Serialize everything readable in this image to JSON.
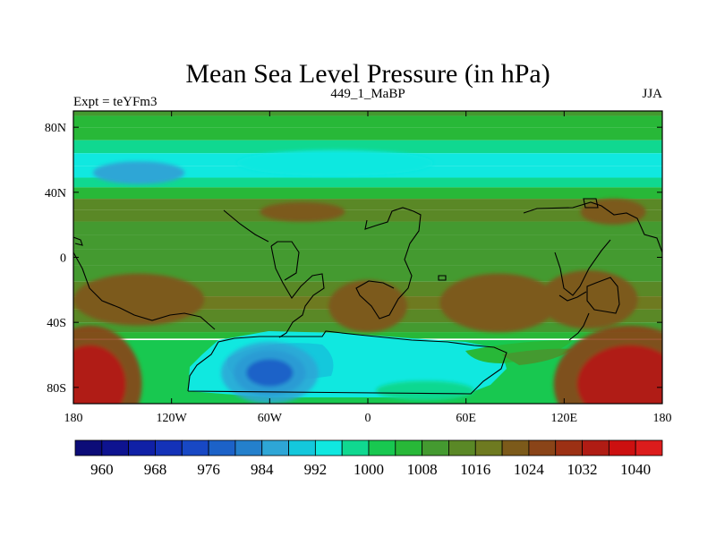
{
  "chart_data": {
    "type": "heatmap",
    "title": "Mean Sea Level Pressure (in hPa)",
    "left_label": "Expt = teYFm3",
    "center_label": "449_1_MaBP",
    "right_label": "JJA",
    "xlim": [
      -180,
      180
    ],
    "ylim": [
      -90,
      90
    ],
    "x_ticks": [
      {
        "value": -180,
        "label": "180"
      },
      {
        "value": -120,
        "label": "120W"
      },
      {
        "value": -60,
        "label": "60W"
      },
      {
        "value": 0,
        "label": "0"
      },
      {
        "value": 60,
        "label": "60E"
      },
      {
        "value": 120,
        "label": "120E"
      },
      {
        "value": 180,
        "label": "180"
      }
    ],
    "y_ticks": [
      {
        "value": 80,
        "label": "80N"
      },
      {
        "value": 40,
        "label": "40N"
      },
      {
        "value": 0,
        "label": "0"
      },
      {
        "value": -40,
        "label": "40S"
      },
      {
        "value": -80,
        "label": "80S"
      }
    ],
    "colorbar": {
      "levels": [
        960,
        964,
        968,
        972,
        976,
        980,
        984,
        988,
        992,
        996,
        1000,
        1004,
        1008,
        1012,
        1016,
        1020,
        1024,
        1028,
        1032,
        1036,
        1040
      ],
      "labeled": [
        "960",
        "968",
        "976",
        "984",
        "992",
        "1000",
        "1008",
        "1016",
        "1024",
        "1032",
        "1040"
      ],
      "colors": [
        "#0c0c78",
        "#0e1390",
        "#1020a6",
        "#1432b8",
        "#1848c4",
        "#1c62c8",
        "#2480cc",
        "#2ea6d6",
        "#14c8dc",
        "#10e8e0",
        "#10d890",
        "#18c850",
        "#28b838",
        "#449a30",
        "#5a8826",
        "#6e7a20",
        "#7c5a1a",
        "#8a4418",
        "#9c3014",
        "#b01c14",
        "#cc1010",
        "#dc1c1c"
      ]
    },
    "zonal_profile": [
      {
        "lat": 90,
        "value": 1010
      },
      {
        "lat": 84,
        "value": 1007
      },
      {
        "lat": 76,
        "value": 1004
      },
      {
        "lat": 68,
        "value": 999
      },
      {
        "lat": 60,
        "value": 994
      },
      {
        "lat": 52,
        "value": 993
      },
      {
        "lat": 46,
        "value": 999
      },
      {
        "lat": 40,
        "value": 1004
      },
      {
        "lat": 32,
        "value": 1012
      },
      {
        "lat": 26,
        "value": 1015
      },
      {
        "lat": 18,
        "value": 1010
      },
      {
        "lat": 10,
        "value": 1008
      },
      {
        "lat": 0,
        "value": 1009
      },
      {
        "lat": -10,
        "value": 1011
      },
      {
        "lat": -20,
        "value": 1014
      },
      {
        "lat": -28,
        "value": 1016
      },
      {
        "lat": -36,
        "value": 1014
      },
      {
        "lat": -44,
        "value": 1009
      },
      {
        "lat": -48,
        "value": 1005
      }
    ],
    "features": [
      {
        "name": "north-pacific-low",
        "lon": -140,
        "lat": 52,
        "rx": 28,
        "ry": 3.5,
        "value": 984
      },
      {
        "name": "north-atlantic-band",
        "lon": -20,
        "lat": 58,
        "rx": 60,
        "ry": 4,
        "value": 992
      },
      {
        "name": "north-pacific-high",
        "lon": 150,
        "lat": 28,
        "rx": 20,
        "ry": 4,
        "value": 1020
      },
      {
        "name": "north-atlantic-high",
        "lon": -40,
        "lat": 28,
        "rx": 26,
        "ry": 3,
        "value": 1020
      },
      {
        "name": "south-pacific-high",
        "lon": -140,
        "lat": -26,
        "rx": 40,
        "ry": 8,
        "value": 1020
      },
      {
        "name": "south-atlantic-high",
        "lon": 0,
        "lat": -30,
        "rx": 24,
        "ry": 8,
        "value": 1020
      },
      {
        "name": "south-indian-high",
        "lon": 80,
        "lat": -28,
        "rx": 36,
        "ry": 9,
        "value": 1020
      },
      {
        "name": "australian-high",
        "lon": 135,
        "lat": -26,
        "rx": 30,
        "ry": 9,
        "value": 1020
      },
      {
        "name": "antarctic-low-center",
        "lon": -60,
        "lat": -71,
        "rx": 22,
        "ry": 7,
        "value": 976
      },
      {
        "name": "antarctic-trough",
        "lon": 35,
        "lat": -82,
        "rx": 30,
        "ry": 3,
        "value": 996
      },
      {
        "name": "high-west",
        "lon": -170,
        "lat": -78,
        "rx": 22,
        "ry": 12,
        "value": 1032
      },
      {
        "name": "high-east",
        "lon": 160,
        "lat": -78,
        "rx": 32,
        "ry": 12,
        "value": 1032
      }
    ]
  }
}
